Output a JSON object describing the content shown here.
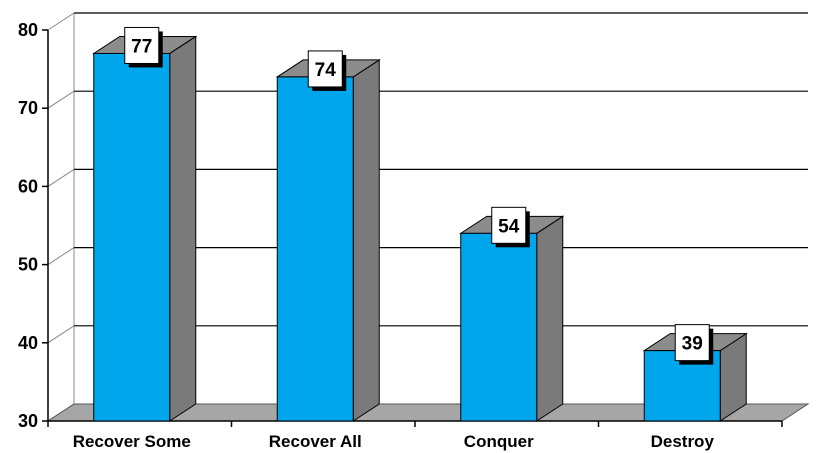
{
  "chart_data": {
    "type": "bar",
    "style": "3d",
    "categories": [
      "Recover Some",
      "Recover All",
      "Conquer",
      "Destroy"
    ],
    "values": [
      77,
      74,
      54,
      39
    ],
    "ylim": [
      30,
      80
    ],
    "yticks": [
      30,
      40,
      50,
      60,
      70,
      80
    ],
    "grid": true,
    "legend": "none",
    "data_labels": true,
    "colors": {
      "bar_front": "#00A6EB",
      "bar_side": "#7A7A7A",
      "bar_top": "#8C8C8C",
      "floor": "#A6A6A6",
      "gridline": "#000000"
    }
  }
}
